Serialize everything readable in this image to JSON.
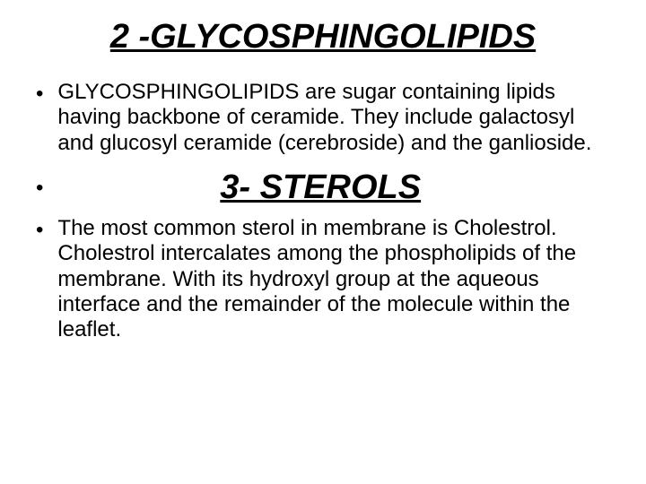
{
  "slide": {
    "title": "2 -GLYCOSPHINGOLIPIDS",
    "para1": "GLYCOSPHINGOLIPIDS are sugar containing lipids having backbone of ceramide. They include galactosyl and glucosyl ceramide (cerebroside) and the ganlioside.",
    "subheading": "3- STEROLS",
    "para2": "The most common sterol in membrane is Cholestrol. Cholestrol intercalates among the phospholipids of the membrane. With its hydroxyl group at the aqueous interface and the remainder of the molecule within the leaflet.",
    "bullet_char": "•",
    "title_fontsize": 38,
    "body_fontsize": 24,
    "text_color": "#000000",
    "background_color": "#ffffff"
  }
}
